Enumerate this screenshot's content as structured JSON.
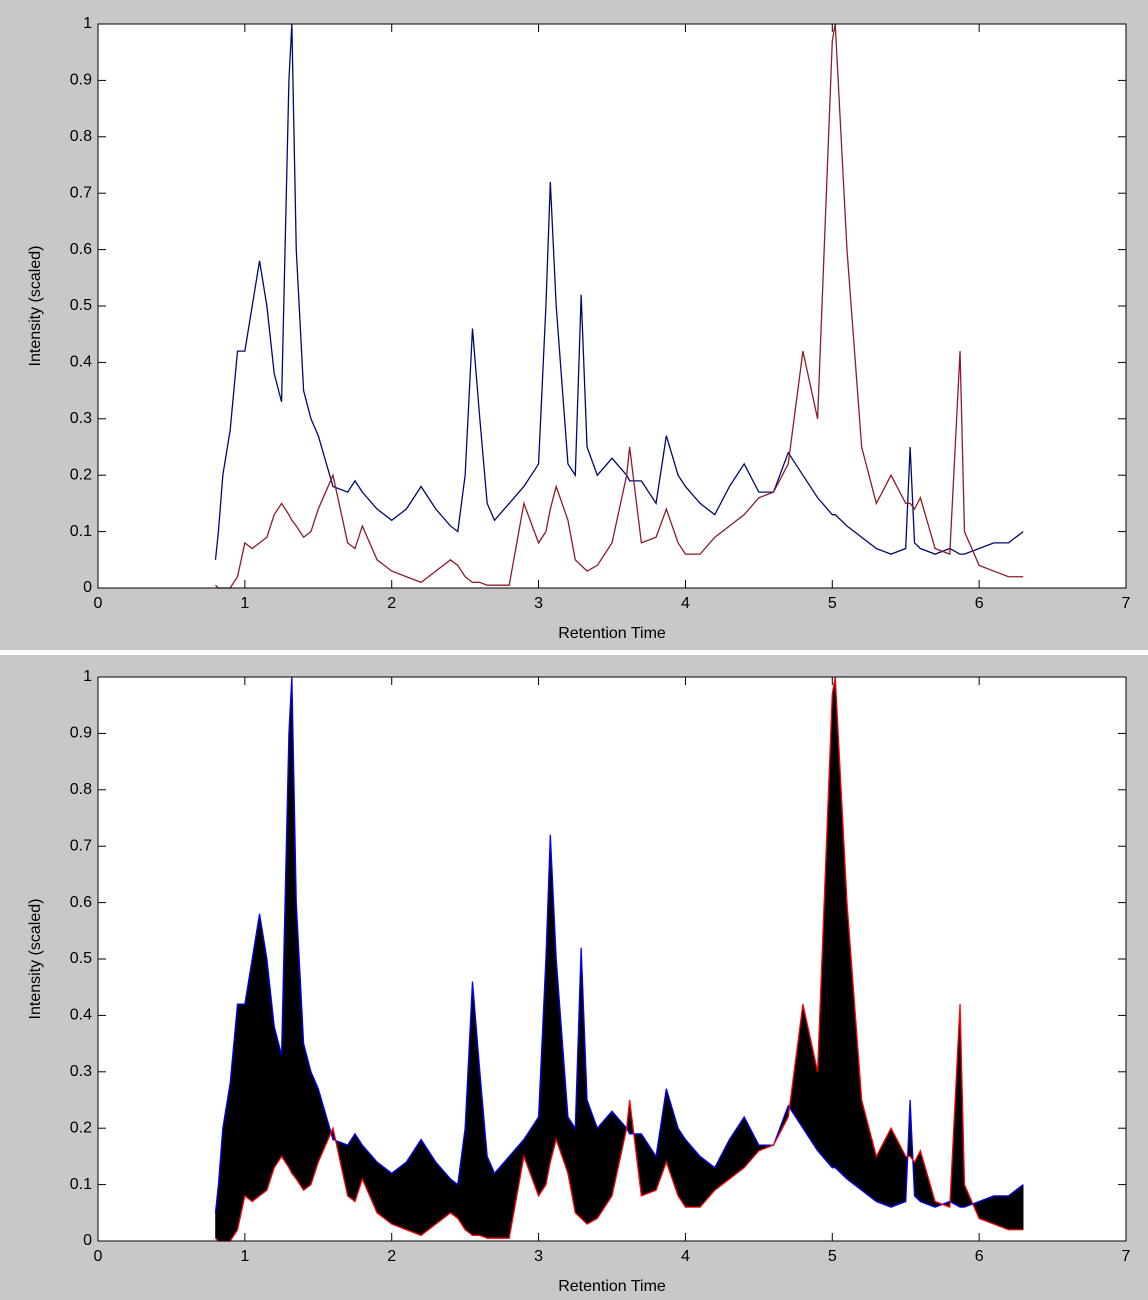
{
  "chart_data": [
    {
      "type": "line",
      "xlabel": "Retention Time",
      "ylabel": "Intensity (scaled)",
      "x": [
        0.8,
        0.82,
        0.85,
        0.9,
        0.95,
        1.0,
        1.05,
        1.1,
        1.15,
        1.2,
        1.25,
        1.3,
        1.32,
        1.35,
        1.4,
        1.45,
        1.5,
        1.6,
        1.7,
        1.75,
        1.8,
        1.9,
        2.0,
        2.1,
        2.2,
        2.3,
        2.4,
        2.45,
        2.5,
        2.55,
        2.6,
        2.65,
        2.7,
        2.8,
        2.9,
        3.0,
        3.05,
        3.08,
        3.12,
        3.2,
        3.25,
        3.29,
        3.33,
        3.4,
        3.5,
        3.6,
        3.62,
        3.7,
        3.8,
        3.87,
        3.95,
        4.0,
        4.1,
        4.2,
        4.3,
        4.4,
        4.5,
        4.6,
        4.7,
        4.75,
        4.8,
        4.9,
        5.0,
        5.02,
        5.1,
        5.2,
        5.3,
        5.4,
        5.5,
        5.53,
        5.56,
        5.6,
        5.7,
        5.8,
        5.87,
        5.9,
        6.0,
        6.1,
        6.2,
        6.3
      ],
      "series": [
        {
          "color": "#000a6e",
          "values": [
            0.05,
            0.1,
            0.2,
            0.28,
            0.42,
            0.42,
            0.5,
            0.58,
            0.5,
            0.38,
            0.33,
            0.9,
            1.0,
            0.6,
            0.35,
            0.3,
            0.27,
            0.18,
            0.17,
            0.19,
            0.17,
            0.14,
            0.12,
            0.14,
            0.18,
            0.14,
            0.11,
            0.1,
            0.2,
            0.46,
            0.3,
            0.15,
            0.12,
            0.15,
            0.18,
            0.22,
            0.5,
            0.72,
            0.5,
            0.22,
            0.2,
            0.52,
            0.25,
            0.2,
            0.23,
            0.2,
            0.19,
            0.19,
            0.15,
            0.27,
            0.2,
            0.18,
            0.15,
            0.13,
            0.18,
            0.22,
            0.17,
            0.17,
            0.24,
            0.22,
            0.2,
            0.16,
            0.13,
            0.13,
            0.11,
            0.09,
            0.07,
            0.06,
            0.07,
            0.25,
            0.08,
            0.07,
            0.06,
            0.07,
            0.06,
            0.06,
            0.07,
            0.08,
            0.08,
            0.1
          ]
        },
        {
          "color": "#8c1c2a",
          "values": [
            0.005,
            0,
            0,
            0,
            0.02,
            0.08,
            0.07,
            0.08,
            0.09,
            0.13,
            0.15,
            0.13,
            0.12,
            0.11,
            0.09,
            0.1,
            0.14,
            0.2,
            0.08,
            0.07,
            0.11,
            0.05,
            0.03,
            0.02,
            0.01,
            0.03,
            0.05,
            0.04,
            0.02,
            0.01,
            0.01,
            0.005,
            0.005,
            0.005,
            0.15,
            0.08,
            0.1,
            0.14,
            0.18,
            0.12,
            0.05,
            0.04,
            0.03,
            0.04,
            0.08,
            0.2,
            0.25,
            0.08,
            0.09,
            0.14,
            0.08,
            0.06,
            0.06,
            0.09,
            0.11,
            0.13,
            0.16,
            0.17,
            0.22,
            0.32,
            0.42,
            0.3,
            0.97,
            1.0,
            0.6,
            0.25,
            0.15,
            0.2,
            0.15,
            0.15,
            0.14,
            0.16,
            0.07,
            0.06,
            0.42,
            0.1,
            0.04,
            0.03,
            0.02,
            0.02
          ]
        }
      ],
      "xlim": [
        0,
        7
      ],
      "ylim": [
        0,
        1
      ],
      "xticks": [
        0,
        1,
        2,
        3,
        4,
        5,
        6,
        7
      ],
      "yticks": [
        0,
        0.1,
        0.2,
        0.3,
        0.4,
        0.5,
        0.6,
        0.7,
        0.8,
        0.9,
        1
      ],
      "grid": false
    },
    {
      "type": "range",
      "xlabel": "Retention Time",
      "ylabel": "Intensity (scaled)",
      "fill": "#000000",
      "x": [
        0.8,
        0.82,
        0.85,
        0.9,
        0.95,
        1.0,
        1.05,
        1.1,
        1.15,
        1.2,
        1.25,
        1.3,
        1.32,
        1.35,
        1.4,
        1.45,
        1.5,
        1.6,
        1.7,
        1.75,
        1.8,
        1.9,
        2.0,
        2.1,
        2.2,
        2.3,
        2.4,
        2.45,
        2.5,
        2.55,
        2.6,
        2.65,
        2.7,
        2.8,
        2.9,
        3.0,
        3.05,
        3.08,
        3.12,
        3.2,
        3.25,
        3.29,
        3.33,
        3.4,
        3.5,
        3.6,
        3.62,
        3.7,
        3.8,
        3.87,
        3.95,
        4.0,
        4.1,
        4.2,
        4.3,
        4.4,
        4.5,
        4.6,
        4.7,
        4.75,
        4.8,
        4.9,
        5.0,
        5.02,
        5.1,
        5.2,
        5.3,
        5.4,
        5.5,
        5.53,
        5.56,
        5.6,
        5.7,
        5.8,
        5.87,
        5.9,
        6.0,
        6.1,
        6.2,
        6.3
      ],
      "series": [
        {
          "color": "#0000ff",
          "values": [
            0.05,
            0.1,
            0.2,
            0.28,
            0.42,
            0.42,
            0.5,
            0.58,
            0.5,
            0.38,
            0.33,
            0.9,
            1.0,
            0.6,
            0.35,
            0.3,
            0.27,
            0.18,
            0.17,
            0.19,
            0.17,
            0.14,
            0.12,
            0.14,
            0.18,
            0.14,
            0.11,
            0.1,
            0.2,
            0.46,
            0.3,
            0.15,
            0.12,
            0.15,
            0.18,
            0.22,
            0.5,
            0.72,
            0.5,
            0.22,
            0.2,
            0.52,
            0.25,
            0.2,
            0.23,
            0.2,
            0.19,
            0.19,
            0.15,
            0.27,
            0.2,
            0.18,
            0.15,
            0.13,
            0.18,
            0.22,
            0.17,
            0.17,
            0.24,
            0.22,
            0.2,
            0.16,
            0.13,
            0.13,
            0.11,
            0.09,
            0.07,
            0.06,
            0.07,
            0.25,
            0.08,
            0.07,
            0.06,
            0.07,
            0.06,
            0.06,
            0.07,
            0.08,
            0.08,
            0.1
          ]
        },
        {
          "color": "#ff0000",
          "values": [
            0.005,
            0,
            0,
            0,
            0.02,
            0.08,
            0.07,
            0.08,
            0.09,
            0.13,
            0.15,
            0.13,
            0.12,
            0.11,
            0.09,
            0.1,
            0.14,
            0.2,
            0.08,
            0.07,
            0.11,
            0.05,
            0.03,
            0.02,
            0.01,
            0.03,
            0.05,
            0.04,
            0.02,
            0.01,
            0.01,
            0.005,
            0.005,
            0.005,
            0.15,
            0.08,
            0.1,
            0.14,
            0.18,
            0.12,
            0.05,
            0.04,
            0.03,
            0.04,
            0.08,
            0.2,
            0.25,
            0.08,
            0.09,
            0.14,
            0.08,
            0.06,
            0.06,
            0.09,
            0.11,
            0.13,
            0.16,
            0.17,
            0.22,
            0.32,
            0.42,
            0.3,
            0.97,
            1.0,
            0.6,
            0.25,
            0.15,
            0.2,
            0.15,
            0.15,
            0.14,
            0.16,
            0.07,
            0.06,
            0.42,
            0.1,
            0.04,
            0.03,
            0.02,
            0.02
          ]
        }
      ],
      "xlim": [
        0,
        7
      ],
      "ylim": [
        0,
        1
      ],
      "xticks": [
        0,
        1,
        2,
        3,
        4,
        5,
        6,
        7
      ],
      "yticks": [
        0,
        0.1,
        0.2,
        0.3,
        0.4,
        0.5,
        0.6,
        0.7,
        0.8,
        0.9,
        1
      ],
      "grid": false
    }
  ]
}
